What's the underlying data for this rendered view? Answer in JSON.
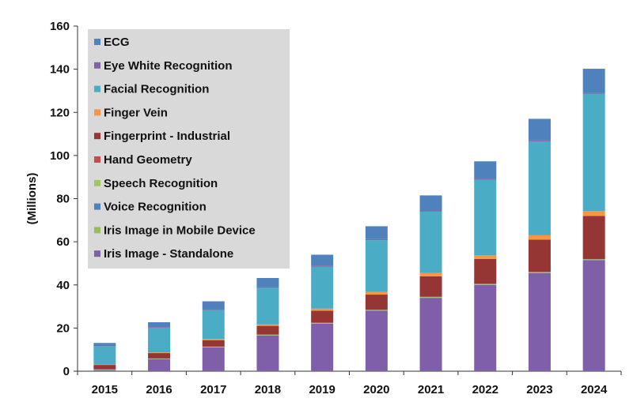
{
  "chart_data": {
    "type": "bar",
    "stacked": true,
    "ylabel": "(Millions)",
    "xlabel": "",
    "ylim": [
      0,
      160
    ],
    "yticks": [
      0,
      20,
      40,
      60,
      80,
      100,
      120,
      140,
      160
    ],
    "grid": false,
    "legend_position": "top-left",
    "categories": [
      "2015",
      "2016",
      "2017",
      "2018",
      "2019",
      "2020",
      "2021",
      "2022",
      "2023",
      "2024"
    ],
    "series": [
      {
        "name": "Iris Image - Standalone",
        "color": "#7f5fa8",
        "values": [
          0.5,
          5.5,
          11,
          16.5,
          22,
          28,
          34,
          40,
          45.5,
          51.5
        ]
      },
      {
        "name": "Iris Image in Mobile Device",
        "color": "#9bbb59",
        "values": [
          0.1,
          0.1,
          0.1,
          0.2,
          0.2,
          0.2,
          0.2,
          0.2,
          0.2,
          0.2
        ]
      },
      {
        "name": "Voice Recognition",
        "color": "#4f81bd",
        "values": [
          0.1,
          0.1,
          0.1,
          0.1,
          0.1,
          0.1,
          0.1,
          0.1,
          0.1,
          0.1
        ]
      },
      {
        "name": "Speech Recognition",
        "color": "#a3c664",
        "values": [
          0.1,
          0.1,
          0.1,
          0.1,
          0.1,
          0.1,
          0.1,
          0.1,
          0.1,
          0.1
        ]
      },
      {
        "name": "Hand Geometry",
        "color": "#c0504d",
        "values": [
          0.1,
          0.1,
          0.1,
          0.1,
          0.1,
          0.1,
          0.1,
          0.1,
          0.1,
          0.1
        ]
      },
      {
        "name": "Fingerprint - Industrial",
        "color": "#963634",
        "values": [
          2,
          2.5,
          3,
          4,
          5.5,
          7,
          9.5,
          11.5,
          15,
          20
        ]
      },
      {
        "name": "Finger Vein",
        "color": "#f79646",
        "values": [
          0.2,
          0.3,
          0.5,
          0.7,
          1,
          1.2,
          1.5,
          1.8,
          2,
          2.2
        ]
      },
      {
        "name": "Facial Recognition",
        "color": "#4bacc6",
        "values": [
          8.5,
          11.5,
          13.5,
          17,
          19.5,
          24,
          28.5,
          35,
          43.5,
          54.5
        ]
      },
      {
        "name": "Eye White Recognition",
        "color": "#8064a2",
        "values": [
          0.5,
          0.5,
          0.5,
          0.5,
          0.5,
          0.5,
          0.5,
          0.5,
          0.5,
          0.5
        ]
      },
      {
        "name": "ECG",
        "color": "#4f81bd",
        "values": [
          1,
          2,
          3.5,
          4,
          5,
          6,
          7,
          8,
          10,
          11
        ]
      }
    ]
  }
}
